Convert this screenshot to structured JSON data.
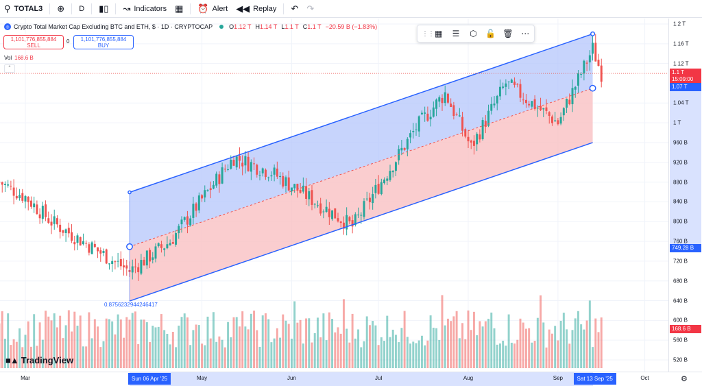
{
  "toolbar": {
    "symbol": "TOTAL3",
    "interval": "D",
    "indicators_label": "Indicators",
    "alert_label": "Alert",
    "replay_label": "Replay"
  },
  "legend": {
    "title": "Crypto Total Market Cap Excluding BTC and ETH, $ · 1D · CRYPTOCAP",
    "open": "1.12 T",
    "high": "1.14 T",
    "low": "1.1 T",
    "close": "1.1 T",
    "change": "−20.59 B (−1.83%)"
  },
  "trade": {
    "sell_price": "1,101,776,855,884",
    "sell_label": "SELL",
    "spread": "0",
    "buy_price": "1,101,776,855,884",
    "buy_label": "BUY"
  },
  "volume": {
    "label": "Vol",
    "value": "168.6 B"
  },
  "drawing": {
    "fib_ratio_label": "0.8756232944246417"
  },
  "price_axis": {
    "ticks": [
      "1.2 T",
      "1.16 T",
      "1.12 T",
      "1.04 T",
      "1 T",
      "960 B",
      "920 B",
      "880 B",
      "840 B",
      "800 B",
      "760 B",
      "720 B",
      "680 B",
      "640 B",
      "600 B",
      "560 B",
      "520 B"
    ],
    "last_price": "1.1 T",
    "countdown": "15:09:00",
    "channel_top": "1.07 T",
    "channel_low": "749.28 B",
    "volume_label": "168.6 B"
  },
  "time_axis": {
    "ticks": [
      "Mar",
      "May",
      "Jun",
      "Jul",
      "Aug",
      "Sep",
      "Oct"
    ],
    "start_label": "Sun 06 Apr '25",
    "end_label": "Sat 13 Sep '25"
  },
  "brand": {
    "name": "TradingView"
  },
  "colors": {
    "up": "#26a69a",
    "down": "#ef5350",
    "accent": "#2962ff",
    "channel_upper": "#b4c6fb",
    "channel_lower": "#f9c0c3"
  },
  "icons": {
    "search": "search-icon",
    "add": "plus-icon",
    "bars": "candle-icon",
    "indicators": "indicators-icon",
    "templates": "grid-icon",
    "alert": "alarm-icon",
    "replay": "replay-icon",
    "undo": "undo-icon",
    "redo": "redo-icon"
  },
  "chart_data": {
    "type": "candlestick",
    "symbol": "TOTAL3",
    "x_range": [
      "2025-02-20",
      "2025-10-15"
    ],
    "y_range": [
      500,
      1220
    ],
    "y_unit": "B USD",
    "trend_channel": {
      "start": {
        "date": "2025-04-06",
        "price": 749.28
      },
      "end": {
        "date": "2025-09-13",
        "price": 1070
      },
      "upper_offset": 110,
      "lower_offset": -110
    },
    "key_closes": [
      {
        "date": "2025-03-01",
        "close": 850
      },
      {
        "date": "2025-03-10",
        "close": 800
      },
      {
        "date": "2025-04-06",
        "close": 700
      },
      {
        "date": "2025-04-20",
        "close": 760
      },
      {
        "date": "2025-05-12",
        "close": 930
      },
      {
        "date": "2025-05-25",
        "close": 900
      },
      {
        "date": "2025-06-22",
        "close": 790
      },
      {
        "date": "2025-07-14",
        "close": 990
      },
      {
        "date": "2025-07-24",
        "close": 1060
      },
      {
        "date": "2025-08-02",
        "close": 950
      },
      {
        "date": "2025-08-14",
        "close": 1080
      },
      {
        "date": "2025-09-01",
        "close": 1000
      },
      {
        "date": "2025-09-13",
        "close": 1150
      },
      {
        "date": "2025-09-16",
        "close": 1100
      }
    ],
    "last_volume": 168.6
  }
}
